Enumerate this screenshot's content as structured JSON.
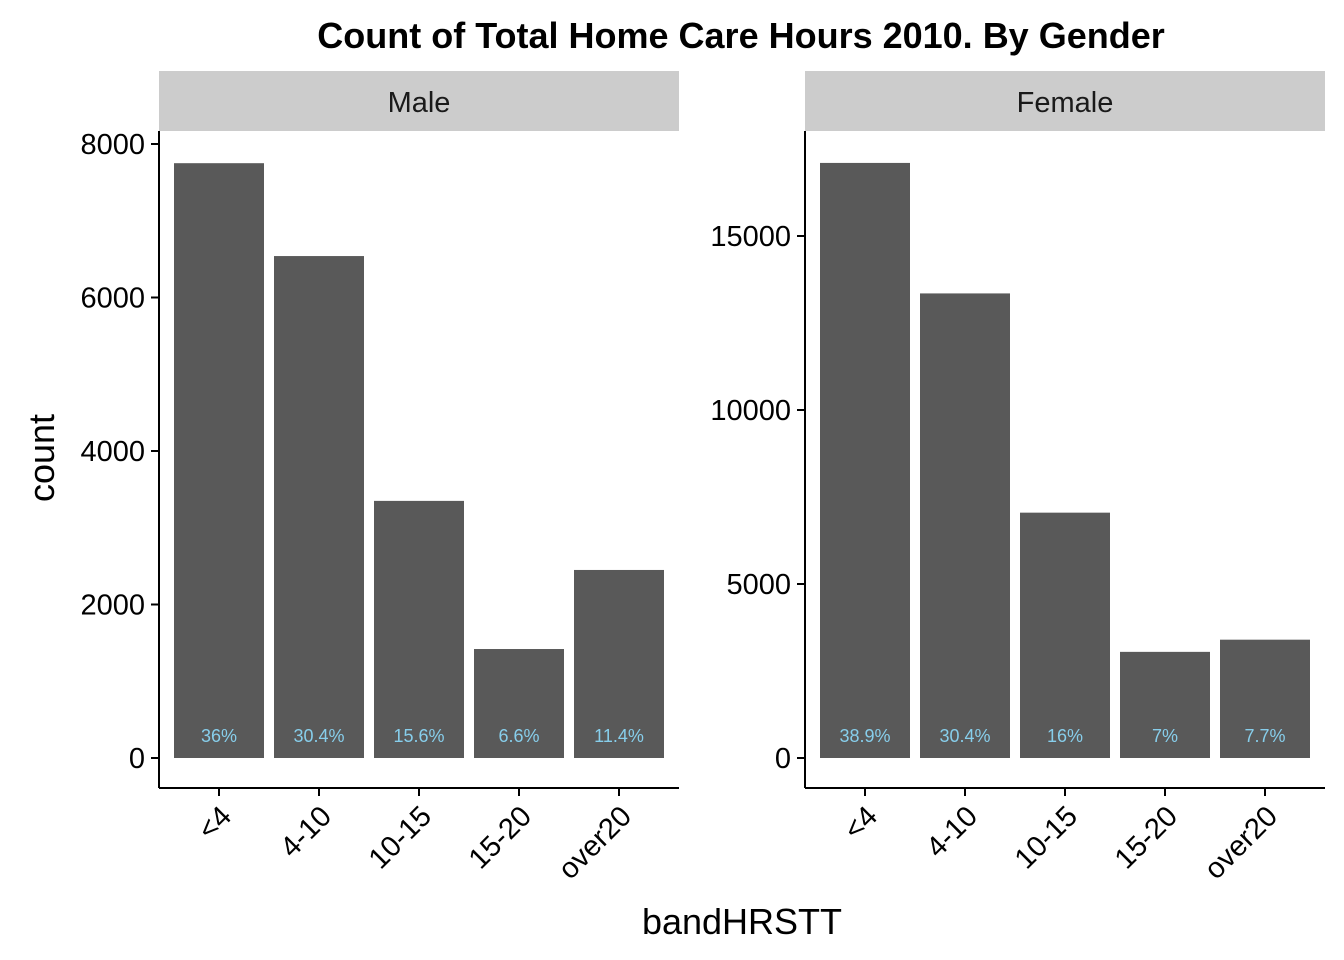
{
  "chart_data": {
    "type": "bar",
    "title": "Count of Total Home Care Hours 2010. By Gender",
    "xlabel": "bandHRSTT",
    "ylabel": "count",
    "categories": [
      "<4",
      "4-10",
      "10-15",
      "15-20",
      "over20"
    ],
    "label_color": "#87ceeb",
    "bar_color": "#595959",
    "strip_color": "#cccccc",
    "grid": false,
    "facets": [
      {
        "name": "Male",
        "values": [
          7750,
          6540,
          3350,
          1420,
          2450
        ],
        "labels": [
          "36%",
          "30.4%",
          "15.6%",
          "6.6%",
          "11.4%"
        ],
        "yticks": [
          0,
          2000,
          4000,
          6000,
          8000
        ],
        "ylim": [
          0,
          8000
        ]
      },
      {
        "name": "Female",
        "values": [
          17100,
          13350,
          7050,
          3050,
          3400
        ],
        "labels": [
          "38.9%",
          "30.4%",
          "16%",
          "7%",
          "7.7%"
        ],
        "yticks": [
          0,
          5000,
          10000,
          15000
        ],
        "ylim": [
          0,
          17300
        ]
      }
    ]
  }
}
